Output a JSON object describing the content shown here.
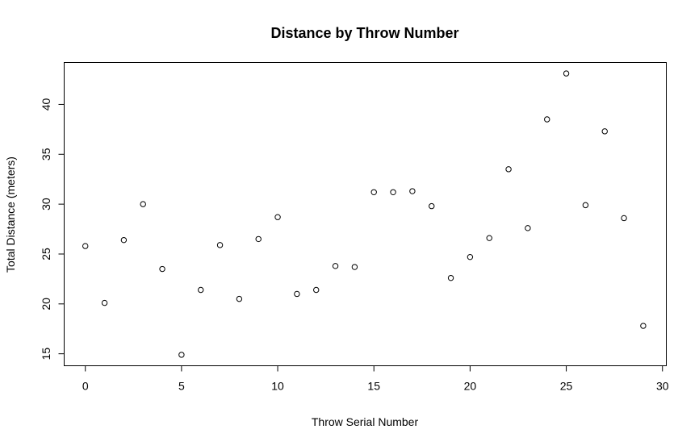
{
  "chart_data": {
    "type": "scatter",
    "title": "Distance by Throw Number",
    "xlabel": "Throw Serial Number",
    "ylabel": "Total Distance (meters)",
    "xlim": [
      -1.1,
      30.2
    ],
    "ylim": [
      13.8,
      44.2
    ],
    "xticks": [
      0,
      5,
      10,
      15,
      20,
      25,
      30
    ],
    "yticks": [
      15,
      20,
      25,
      30,
      35,
      40
    ],
    "grid": false,
    "point_style": "open-circle",
    "series": [
      {
        "x": [
          0,
          1,
          2,
          3,
          4,
          5,
          6,
          7,
          8,
          9,
          10,
          11,
          12,
          13,
          14,
          15,
          16,
          17,
          18,
          19,
          20,
          21,
          22,
          23,
          24,
          25,
          26,
          27,
          28,
          29
        ],
        "y": [
          25.8,
          20.1,
          26.4,
          30.0,
          23.5,
          14.9,
          21.4,
          25.9,
          20.5,
          26.5,
          28.7,
          21.0,
          21.4,
          23.8,
          23.7,
          31.2,
          31.2,
          31.3,
          29.8,
          22.6,
          24.7,
          26.6,
          33.5,
          27.6,
          38.5,
          43.1,
          29.9,
          37.3,
          28.6,
          17.8
        ]
      }
    ]
  }
}
